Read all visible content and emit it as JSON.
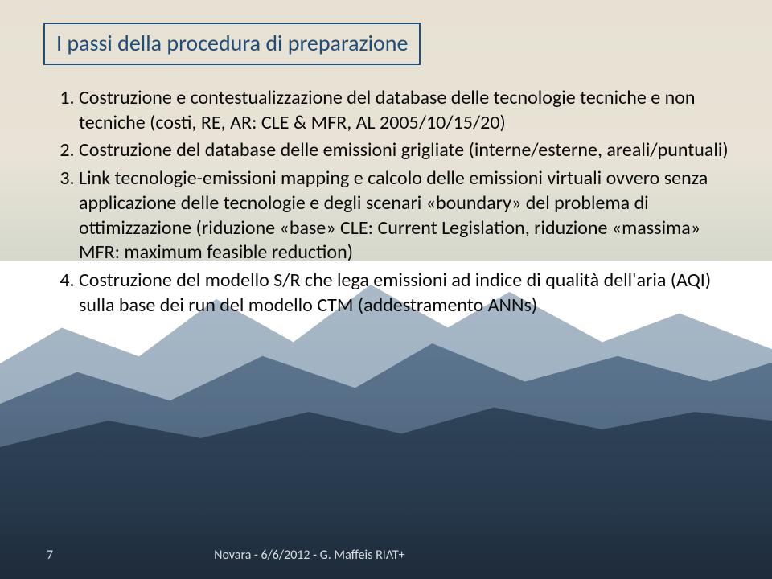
{
  "colors": {
    "title_border": "#1f4e79",
    "title_text": "#1f4e79",
    "body_text": "#0a0a0a",
    "footer_text": "#d9dde0"
  },
  "title": "I passi della procedura di preparazione",
  "items": [
    "Costruzione e contestualizzazione del database delle tecnologie tecniche e non tecniche (costi, RE, AR: CLE & MFR, AL 2005/10/15/20)",
    "Costruzione del database delle emissioni grigliate (interne/esterne, areali/puntuali)",
    "Link tecnologie-emissioni mapping e calcolo delle emissioni virtuali ovvero senza applicazione delle tecnologie e degli scenari «boundary» del problema di ottimizzazione (riduzione «base» CLE: Current Legislation, riduzione «massima» MFR: maximum feasible reduction)",
    "Costruzione del modello S/R che lega emissioni ad indice di qualità dell'aria (AQI) sulla base dei run del modello CTM (addestramento ANNs)"
  ],
  "footer": {
    "page": "7",
    "text": "Novara - 6/6/2012 - G. Maffeis RIAT+"
  }
}
